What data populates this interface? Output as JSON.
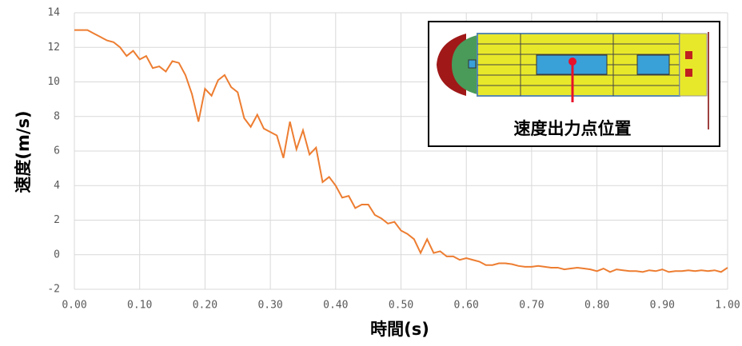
{
  "chart_data": {
    "type": "line",
    "x_label": "時間(s)",
    "y_label": "速度(m/s)",
    "annotation": "速度出力点位置",
    "x": [
      0,
      0.01,
      0.02,
      0.03,
      0.04,
      0.05,
      0.06,
      0.07,
      0.08,
      0.09,
      0.1,
      0.11,
      0.12,
      0.13,
      0.14,
      0.15,
      0.16,
      0.17,
      0.18,
      0.19,
      0.2,
      0.21,
      0.22,
      0.23,
      0.24,
      0.25,
      0.26,
      0.27,
      0.28,
      0.29,
      0.3,
      0.31,
      0.32,
      0.33,
      0.34,
      0.35,
      0.36,
      0.37,
      0.38,
      0.39,
      0.4,
      0.41,
      0.42,
      0.43,
      0.44,
      0.45,
      0.46,
      0.47,
      0.48,
      0.49,
      0.5,
      0.51,
      0.52,
      0.53,
      0.54,
      0.55,
      0.56,
      0.57,
      0.58,
      0.59,
      0.6,
      0.61,
      0.62,
      0.63,
      0.64,
      0.65,
      0.66,
      0.67,
      0.68,
      0.69,
      0.7,
      0.71,
      0.72,
      0.73,
      0.74,
      0.75,
      0.76,
      0.77,
      0.78,
      0.79,
      0.8,
      0.81,
      0.82,
      0.83,
      0.84,
      0.85,
      0.86,
      0.87,
      0.88,
      0.89,
      0.9,
      0.91,
      0.92,
      0.93,
      0.94,
      0.95,
      0.96,
      0.97,
      0.98,
      0.99,
      1
    ],
    "values": [
      13,
      13,
      13,
      12.8,
      12.6,
      12.4,
      12.3,
      12,
      11.5,
      11.8,
      11.3,
      11.5,
      10.8,
      10.9,
      10.6,
      11.2,
      11.1,
      10.4,
      9.3,
      7.7,
      9.6,
      9.2,
      10.1,
      10.4,
      9.7,
      9.4,
      7.9,
      7.4,
      8.1,
      7.3,
      7.1,
      6.9,
      5.6,
      7.7,
      6.1,
      7.2,
      5.8,
      6.2,
      4.2,
      4.5,
      4,
      3.3,
      3.4,
      2.7,
      2.9,
      2.9,
      2.3,
      2.1,
      1.8,
      1.9,
      1.4,
      1.2,
      0.9,
      0.1,
      0.9,
      0.1,
      0.2,
      -0.1,
      -0.1,
      -0.3,
      -0.2,
      -0.3,
      -0.4,
      -0.6,
      -0.6,
      -0.5,
      -0.5,
      -0.55,
      -0.65,
      -0.7,
      -0.7,
      -0.65,
      -0.7,
      -0.75,
      -0.75,
      -0.85,
      -0.8,
      -0.75,
      -0.8,
      -0.85,
      -0.95,
      -0.8,
      -1,
      -0.85,
      -0.9,
      -0.95,
      -0.95,
      -1,
      -0.9,
      -0.95,
      -0.85,
      -1,
      -0.95,
      -0.95,
      -0.9,
      -0.95,
      -0.9,
      -0.95,
      -0.9,
      -1,
      -0.75
    ],
    "color": "#ed7d31",
    "xlim": [
      0,
      1
    ],
    "ylim": [
      -2,
      14
    ],
    "xticks": [
      {
        "value": 0,
        "label": "0.00"
      },
      {
        "value": 0.1,
        "label": "0.10"
      },
      {
        "value": 0.2,
        "label": "0.20"
      },
      {
        "value": 0.3,
        "label": "0.30"
      },
      {
        "value": 0.4,
        "label": "0.40"
      },
      {
        "value": 0.5,
        "label": "0.50"
      },
      {
        "value": 0.6,
        "label": "0.60"
      },
      {
        "value": 0.7,
        "label": "0.70"
      },
      {
        "value": 0.8,
        "label": "0.80"
      },
      {
        "value": 0.9,
        "label": "0.90"
      },
      {
        "value": 1,
        "label": "1.00"
      }
    ],
    "yticks": [
      -2,
      0,
      2,
      4,
      6,
      8,
      10,
      12,
      14
    ],
    "grid": true
  }
}
